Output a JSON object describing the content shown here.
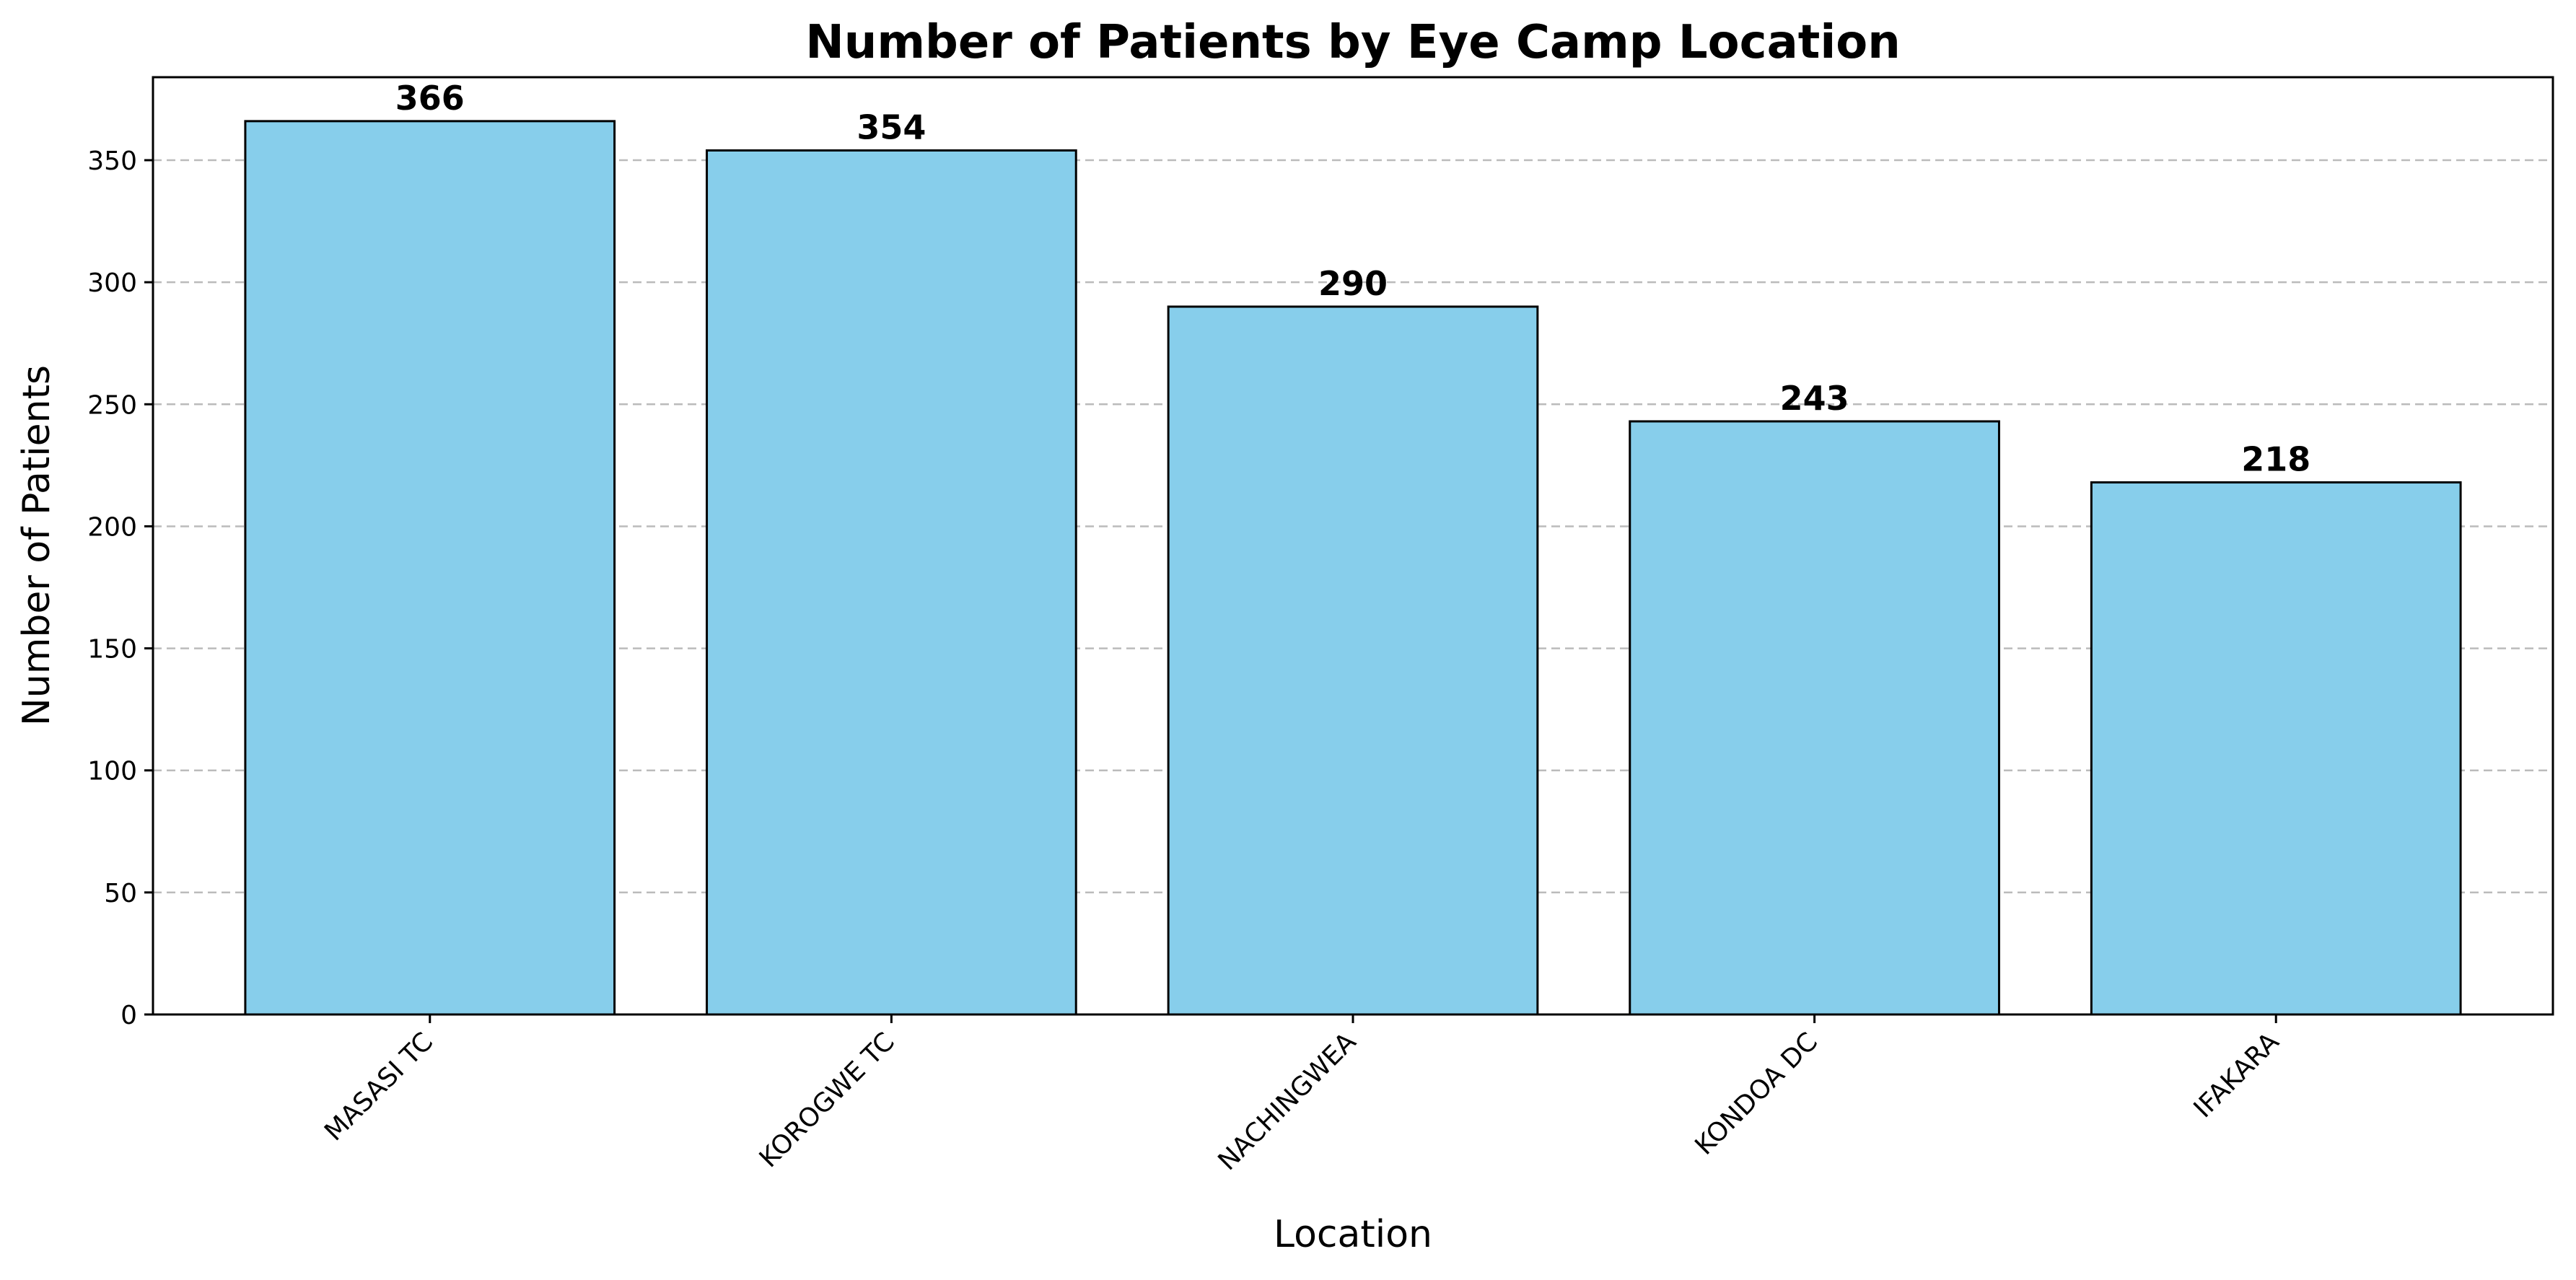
{
  "chart_data": {
    "type": "bar",
    "title": "Number of Patients by Eye Camp Location",
    "xlabel": "Location",
    "ylabel": "Number of Patients",
    "categories": [
      "MASASI TC",
      "KOROGWE TC",
      "NACHINGWEA",
      "KONDOA DC",
      "IFAKARA"
    ],
    "values": [
      366,
      354,
      290,
      243,
      218
    ],
    "data_labels": [
      "366",
      "354",
      "290",
      "243",
      "218"
    ],
    "ylim": [
      0,
      384
    ],
    "yticks": [
      0,
      50,
      100,
      150,
      200,
      250,
      300,
      350
    ],
    "ytick_labels": [
      "0",
      "50",
      "100",
      "150",
      "200",
      "250",
      "300",
      "350"
    ],
    "grid": "y-dashed",
    "legend": "none",
    "colors": {
      "bar_fill": "#87CEEB",
      "bar_edge": "#000000",
      "grid": "#bbbbbb"
    }
  }
}
